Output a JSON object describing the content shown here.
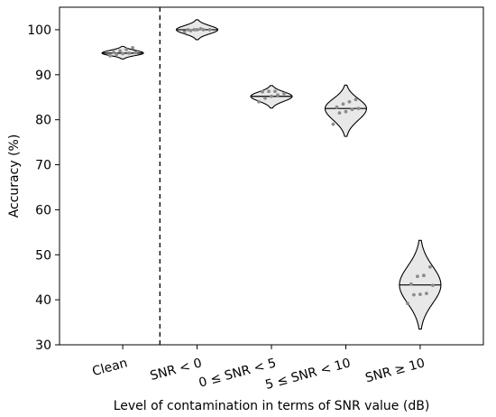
{
  "chart_data": {
    "type": "violin",
    "categories": [
      "Clean",
      "SNR < 0",
      "0 ≤ SNR < 5",
      "5 ≤ SNR < 10",
      "SNR ≥ 10"
    ],
    "xlabel": "Level of contamination in terms of SNR value (dB)",
    "ylabel": "Accuracy (%)",
    "ylim": [
      30,
      105
    ],
    "yticks": [
      30,
      40,
      50,
      60,
      70,
      80,
      90,
      100
    ],
    "grid": false,
    "separator_after_category": "Clean",
    "violins": [
      {
        "category": "Clean",
        "median": 94.8,
        "range": [
          93.5,
          96.3
        ],
        "points": [
          94.2,
          94.5,
          94.7,
          94.8,
          94.9,
          95.0,
          95.3,
          95.6,
          96.0
        ]
      },
      {
        "category": "SNR < 0",
        "median": 100,
        "range": [
          97.8,
          102.2
        ],
        "points": [
          99.5,
          99.8,
          100,
          100,
          100,
          100,
          100,
          100.2
        ]
      },
      {
        "category": "0 ≤ SNR < 5",
        "median": 85.2,
        "range": [
          82.6,
          87.6
        ],
        "points": [
          84.0,
          84.8,
          85.2,
          85.5,
          85.8,
          86.2,
          86.3,
          86.3
        ]
      },
      {
        "category": "5 ≤ SNR < 10",
        "median": 82.5,
        "range": [
          76.3,
          87.7
        ],
        "points": [
          79.0,
          81.5,
          81.8,
          82.3,
          82.5,
          82.8,
          83.5,
          84.0,
          84.5
        ]
      },
      {
        "category": "SNR ≥ 10",
        "median": 43.3,
        "range": [
          33.5,
          53.2
        ],
        "points": [
          39.2,
          41.1,
          41.2,
          41.4,
          43.2,
          43.5,
          45.2,
          45.4,
          47.3
        ]
      }
    ],
    "colors": {
      "violin_fill": "#e8e8e8",
      "violin_stroke": "#000000",
      "point": "#8c8c8c",
      "median_line": "#000000",
      "separator": "#000000"
    }
  }
}
